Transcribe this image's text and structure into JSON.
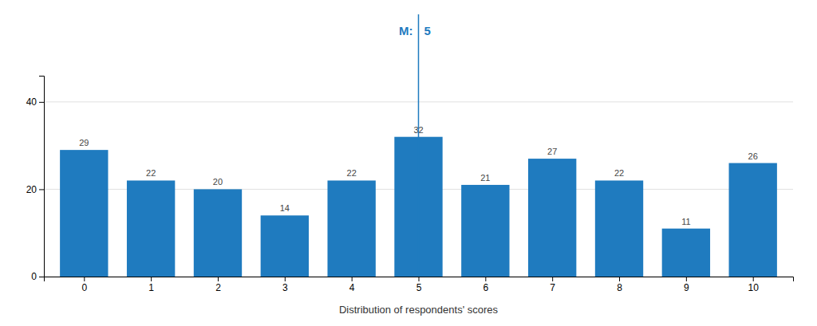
{
  "chart_data": {
    "type": "bar",
    "xlabel": "Distribution of respondents' scores",
    "x": [
      0,
      1,
      2,
      3,
      4,
      5,
      6,
      7,
      8,
      9,
      10
    ],
    "values": [
      29,
      22,
      20,
      14,
      22,
      32,
      21,
      27,
      22,
      11,
      26
    ],
    "color": "#1F7BBF",
    "xlim": [
      -0.6,
      10.6
    ],
    "xticks": [
      0,
      1,
      2,
      3,
      4,
      5,
      6,
      7,
      8,
      9,
      10
    ],
    "ylim": [
      0,
      46
    ],
    "yticks": [
      0,
      20,
      40
    ],
    "grid": true,
    "data_labels": true,
    "median": {
      "value": 5,
      "label": "M:",
      "color": "#1F7BBF"
    }
  }
}
